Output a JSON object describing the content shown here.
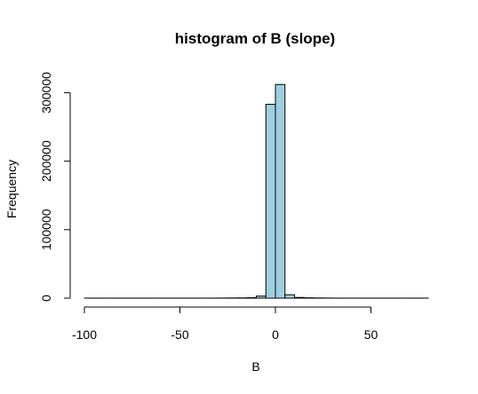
{
  "chart_data": {
    "type": "bar",
    "title": "histogram of B (slope)",
    "xlabel": "B",
    "ylabel": "Frequency",
    "xlim": [
      -100,
      80
    ],
    "ylim": [
      0,
      320000
    ],
    "x_ticks": [
      -100,
      -50,
      0,
      50
    ],
    "y_ticks": [
      0,
      100000,
      200000,
      300000
    ],
    "x_tick_labels": [
      "-100",
      "-50",
      "0",
      "50"
    ],
    "y_tick_labels": [
      "0",
      "100000",
      "200000",
      "300000"
    ],
    "bin_width": 5,
    "bins_start": [
      -100,
      -95,
      -90,
      -85,
      -80,
      -75,
      -70,
      -65,
      -60,
      -55,
      -50,
      -45,
      -40,
      -35,
      -30,
      -25,
      -20,
      -15,
      -10,
      -5,
      0,
      5,
      10,
      15,
      20,
      25,
      30,
      35,
      40,
      45,
      50,
      55,
      60,
      65,
      70,
      75
    ],
    "values": [
      100,
      100,
      100,
      100,
      100,
      100,
      100,
      100,
      100,
      100,
      100,
      100,
      100,
      100,
      200,
      300,
      400,
      700,
      3000,
      283000,
      312000,
      5000,
      1000,
      500,
      300,
      200,
      100,
      100,
      100,
      100,
      100,
      100,
      100,
      100,
      100,
      100
    ],
    "bar_color": "#9fcfe0",
    "grid": false
  }
}
